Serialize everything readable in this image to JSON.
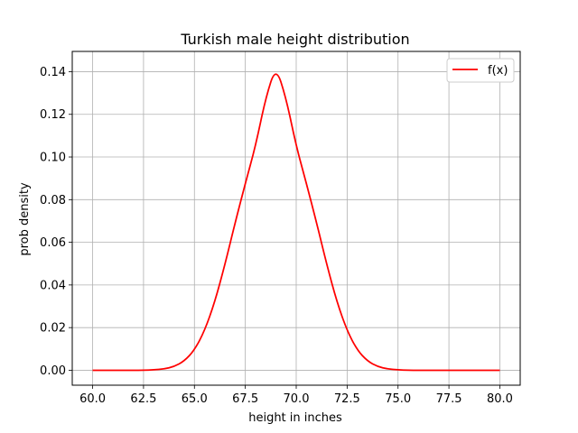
{
  "chart_data": {
    "type": "line",
    "title": "Turkish male height distribution",
    "xlabel": "height in inches",
    "ylabel": "prob density",
    "xlim": [
      59.0,
      81.0
    ],
    "ylim": [
      -0.007,
      0.1495
    ],
    "xticks": [
      60.0,
      62.5,
      65.0,
      67.5,
      70.0,
      72.5,
      75.0,
      77.5,
      80.0
    ],
    "xtick_labels": [
      "60.0",
      "62.5",
      "65.0",
      "67.5",
      "70.0",
      "72.5",
      "75.0",
      "77.5",
      "80.0"
    ],
    "yticks": [
      0.0,
      0.02,
      0.04,
      0.06,
      0.08,
      0.1,
      0.12,
      0.14
    ],
    "ytick_labels": [
      "0.00",
      "0.02",
      "0.04",
      "0.06",
      "0.08",
      "0.10",
      "0.12",
      "0.14"
    ],
    "grid": true,
    "legend_position": "top-right",
    "series": [
      {
        "name": "f(x)",
        "color": "#ff0000",
        "x": [
          60.0,
          60.5,
          61.0,
          61.5,
          62.0,
          62.5,
          63.0,
          63.5,
          64.0,
          64.5,
          65.0,
          65.5,
          66.0,
          66.5,
          67.0,
          67.5,
          68.0,
          68.5,
          69.0,
          69.5,
          70.0,
          70.5,
          71.0,
          71.5,
          72.0,
          72.5,
          73.0,
          73.5,
          74.0,
          74.5,
          75.0,
          75.5,
          76.0,
          76.5,
          77.0,
          77.5,
          78.0,
          78.5,
          79.0,
          79.5,
          80.0
        ],
        "y": [
          0.0,
          0.0,
          0.0,
          0.0,
          0.0,
          0.0,
          0.0002,
          0.0006,
          0.0017,
          0.0043,
          0.0094,
          0.0185,
          0.032,
          0.0496,
          0.0692,
          0.0876,
          0.1051,
          0.1277,
          0.1425,
          0.1277,
          0.1051,
          0.0876,
          0.0692,
          0.0496,
          0.032,
          0.0185,
          0.0094,
          0.0043,
          0.0017,
          0.0006,
          0.0002,
          0.0,
          0.0,
          0.0,
          0.0,
          0.0,
          0.0,
          0.0,
          0.0,
          0.0,
          0.0
        ]
      }
    ]
  }
}
